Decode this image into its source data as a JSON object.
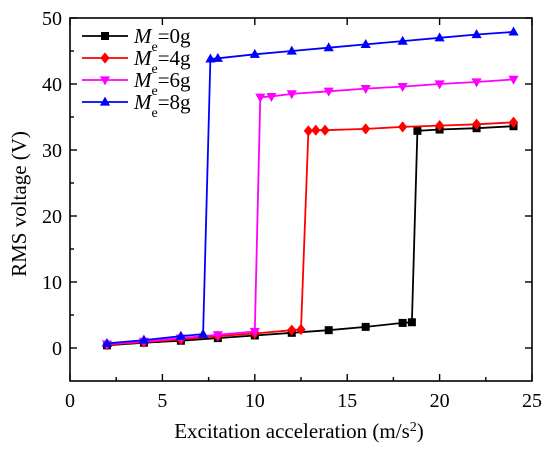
{
  "chart_data": {
    "type": "line",
    "xlabel": "Excitation acceleration (m/s",
    "xlabel_sup": "2",
    "xlabel_end": ")",
    "ylabel": "RMS voltage (V)",
    "xlim": [
      0,
      25
    ],
    "ylim": [
      -5,
      50
    ],
    "xticks": [
      0,
      5,
      10,
      15,
      20,
      25
    ],
    "yticks": [
      0,
      10,
      20,
      30,
      40,
      50
    ],
    "grid": false,
    "legend_position": "top-left",
    "series": [
      {
        "name": "Me=0g",
        "legend_symbol": "M",
        "legend_sub": "e",
        "legend_value": "=0g",
        "color": "#000000",
        "marker": "square",
        "points": [
          [
            2,
            0.4
          ],
          [
            4,
            0.8
          ],
          [
            6,
            1.1
          ],
          [
            8,
            1.5
          ],
          [
            10,
            1.9
          ],
          [
            12,
            2.3
          ],
          [
            14,
            2.7
          ],
          [
            16,
            3.2
          ],
          [
            18,
            3.8
          ],
          [
            18.5,
            3.9
          ],
          [
            18.8,
            32.9
          ],
          [
            20,
            33.1
          ],
          [
            22,
            33.3
          ],
          [
            24,
            33.6
          ]
        ]
      },
      {
        "name": "Me=4g",
        "legend_symbol": "M",
        "legend_sub": "e",
        "legend_value": "=4g",
        "color": "#ff0000",
        "marker": "diamond",
        "points": [
          [
            2,
            0.5
          ],
          [
            4,
            0.9
          ],
          [
            6,
            1.3
          ],
          [
            8,
            1.8
          ],
          [
            10,
            2.2
          ],
          [
            12,
            2.7
          ],
          [
            12.5,
            2.8
          ],
          [
            12.9,
            32.9
          ],
          [
            13.3,
            33.0
          ],
          [
            13.8,
            33.0
          ],
          [
            16,
            33.2
          ],
          [
            18,
            33.5
          ],
          [
            20,
            33.7
          ],
          [
            22,
            33.9
          ],
          [
            24,
            34.2
          ]
        ]
      },
      {
        "name": "Me=6g",
        "legend_symbol": "M",
        "legend_sub": "e",
        "legend_value": "=6g",
        "color": "#ff00ff",
        "marker": "triangle-down",
        "points": [
          [
            2,
            0.6
          ],
          [
            4,
            1.0
          ],
          [
            6,
            1.5
          ],
          [
            8,
            2.0
          ],
          [
            10,
            2.5
          ],
          [
            10.3,
            38.0
          ],
          [
            10.9,
            38.1
          ],
          [
            12,
            38.5
          ],
          [
            14,
            38.9
          ],
          [
            16,
            39.3
          ],
          [
            18,
            39.6
          ],
          [
            20,
            40.0
          ],
          [
            22,
            40.3
          ],
          [
            24,
            40.7
          ]
        ]
      },
      {
        "name": "Me=8g",
        "legend_symbol": "M",
        "legend_sub": "e",
        "legend_value": "=8g",
        "color": "#0000ff",
        "marker": "triangle-up",
        "points": [
          [
            2,
            0.7
          ],
          [
            4,
            1.2
          ],
          [
            6,
            1.8
          ],
          [
            7.2,
            2.1
          ],
          [
            7.6,
            43.8
          ],
          [
            8.0,
            43.9
          ],
          [
            10,
            44.5
          ],
          [
            12,
            45.0
          ],
          [
            14,
            45.5
          ],
          [
            16,
            46.0
          ],
          [
            18,
            46.5
          ],
          [
            20,
            47.0
          ],
          [
            22,
            47.5
          ],
          [
            24,
            47.9
          ]
        ]
      }
    ]
  }
}
